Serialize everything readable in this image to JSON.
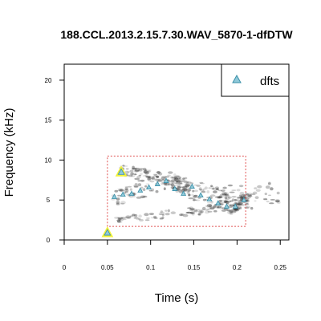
{
  "chart_data": {
    "type": "scatter",
    "title": "188.CCL.2013.2.15.7.30.WAV_5870-1-dfDTW",
    "xlabel": "Time (s)",
    "ylabel": "Frequency (kHz)",
    "xlim": [
      0,
      0.26
    ],
    "ylim": [
      0,
      22
    ],
    "x_ticks": [
      "0",
      "0.05",
      "0.1",
      "0.15",
      "0.2",
      "0.25"
    ],
    "y_ticks": [
      "0",
      "5",
      "10",
      "15",
      "20"
    ],
    "grid": false,
    "legend": {
      "position": "top-right",
      "entries": [
        "dfts"
      ]
    },
    "colors": {
      "marker_fill": "#8fc9d9",
      "marker_stroke": "#3a8fa8",
      "highlight": "#f2f23a",
      "box": "#e05050",
      "spectrogram": "#333333"
    },
    "selection_box": {
      "x": [
        0.05,
        0.21
      ],
      "y": [
        1.7,
        10.5
      ]
    },
    "series": [
      {
        "name": "dfts",
        "points": [
          {
            "x": 0.058,
            "y": 5.4
          },
          {
            "x": 0.068,
            "y": 5.7
          },
          {
            "x": 0.078,
            "y": 5.8
          },
          {
            "x": 0.088,
            "y": 6.2
          },
          {
            "x": 0.098,
            "y": 6.6
          },
          {
            "x": 0.108,
            "y": 7.0
          },
          {
            "x": 0.118,
            "y": 7.4
          },
          {
            "x": 0.128,
            "y": 6.4
          },
          {
            "x": 0.138,
            "y": 5.8
          },
          {
            "x": 0.148,
            "y": 6.7
          },
          {
            "x": 0.158,
            "y": 5.6
          },
          {
            "x": 0.168,
            "y": 5.1
          },
          {
            "x": 0.178,
            "y": 4.6
          },
          {
            "x": 0.188,
            "y": 4.2
          },
          {
            "x": 0.198,
            "y": 4.2
          },
          {
            "x": 0.208,
            "y": 5.0
          }
        ]
      }
    ],
    "highlighted_points": [
      {
        "x": 0.05,
        "y": 0.9
      },
      {
        "x": 0.066,
        "y": 8.5
      }
    ]
  }
}
